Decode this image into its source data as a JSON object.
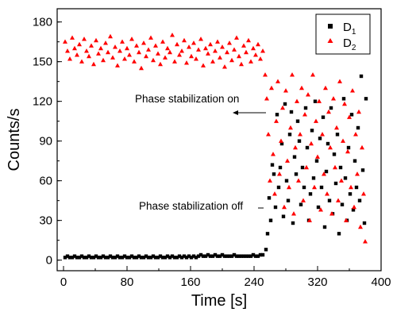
{
  "chart_data": {
    "type": "scatter",
    "xlabel": "Time [s]",
    "ylabel": "Counts/s",
    "xlim": [
      -8,
      400
    ],
    "ylim": [
      -8,
      190
    ],
    "x_ticks": [
      0,
      80,
      160,
      240,
      320,
      400
    ],
    "y_ticks": [
      0,
      30,
      60,
      90,
      120,
      150,
      180
    ],
    "grid": false,
    "legend_position": "top-right",
    "annotations": [
      {
        "text": "Phase stabilization on",
        "arrow_to": [
          254,
          112
        ]
      },
      {
        "text": "Phase stabilization off",
        "arrow_to": [
          254,
          2
        ]
      }
    ],
    "series": [
      {
        "name": "D",
        "subscript": "1",
        "marker": "square",
        "color": "#000000",
        "points": [
          [
            2,
            2
          ],
          [
            5,
            3
          ],
          [
            8,
            2
          ],
          [
            11,
            2
          ],
          [
            14,
            3
          ],
          [
            17,
            2
          ],
          [
            20,
            2
          ],
          [
            23,
            3
          ],
          [
            26,
            2
          ],
          [
            29,
            2
          ],
          [
            32,
            3
          ],
          [
            35,
            2
          ],
          [
            38,
            2
          ],
          [
            41,
            3
          ],
          [
            44,
            2
          ],
          [
            47,
            2
          ],
          [
            50,
            3
          ],
          [
            53,
            2
          ],
          [
            56,
            2
          ],
          [
            59,
            3
          ],
          [
            62,
            2
          ],
          [
            65,
            2
          ],
          [
            68,
            3
          ],
          [
            71,
            2
          ],
          [
            74,
            2
          ],
          [
            77,
            3
          ],
          [
            80,
            2
          ],
          [
            83,
            2
          ],
          [
            86,
            3
          ],
          [
            89,
            2
          ],
          [
            92,
            2
          ],
          [
            95,
            3
          ],
          [
            98,
            2
          ],
          [
            101,
            2
          ],
          [
            104,
            3
          ],
          [
            107,
            2
          ],
          [
            110,
            2
          ],
          [
            113,
            3
          ],
          [
            116,
            2
          ],
          [
            119,
            2
          ],
          [
            122,
            3
          ],
          [
            125,
            2
          ],
          [
            128,
            2
          ],
          [
            131,
            3
          ],
          [
            134,
            2
          ],
          [
            137,
            3
          ],
          [
            140,
            2
          ],
          [
            143,
            2
          ],
          [
            146,
            3
          ],
          [
            149,
            2
          ],
          [
            152,
            3
          ],
          [
            155,
            2
          ],
          [
            158,
            3
          ],
          [
            161,
            2
          ],
          [
            164,
            3
          ],
          [
            167,
            2
          ],
          [
            170,
            3
          ],
          [
            173,
            4
          ],
          [
            176,
            3
          ],
          [
            179,
            3
          ],
          [
            182,
            4
          ],
          [
            185,
            3
          ],
          [
            188,
            3
          ],
          [
            191,
            4
          ],
          [
            194,
            3
          ],
          [
            197,
            3
          ],
          [
            200,
            4
          ],
          [
            203,
            3
          ],
          [
            206,
            3
          ],
          [
            209,
            3
          ],
          [
            212,
            3
          ],
          [
            215,
            4
          ],
          [
            218,
            3
          ],
          [
            221,
            3
          ],
          [
            224,
            3
          ],
          [
            227,
            3
          ],
          [
            230,
            3
          ],
          [
            233,
            3
          ],
          [
            236,
            3
          ],
          [
            239,
            4
          ],
          [
            242,
            3
          ],
          [
            245,
            3
          ],
          [
            248,
            4
          ],
          [
            251,
            4
          ],
          [
            255,
            8
          ],
          [
            257,
            20
          ],
          [
            259,
            47
          ],
          [
            261,
            30
          ],
          [
            263,
            72
          ],
          [
            265,
            65
          ],
          [
            267,
            40
          ],
          [
            269,
            110
          ],
          [
            271,
            55
          ],
          [
            273,
            70
          ],
          [
            275,
            88
          ],
          [
            277,
            33
          ],
          [
            279,
            118
          ],
          [
            281,
            60
          ],
          [
            283,
            45
          ],
          [
            285,
            95
          ],
          [
            287,
            112
          ],
          [
            289,
            28
          ],
          [
            291,
            78
          ],
          [
            293,
            65
          ],
          [
            295,
            105
          ],
          [
            297,
            90
          ],
          [
            299,
            42
          ],
          [
            301,
            70
          ],
          [
            303,
            55
          ],
          [
            305,
            115
          ],
          [
            307,
            85
          ],
          [
            309,
            30
          ],
          [
            311,
            50
          ],
          [
            313,
            98
          ],
          [
            315,
            62
          ],
          [
            317,
            120
          ],
          [
            319,
            75
          ],
          [
            321,
            40
          ],
          [
            323,
            92
          ],
          [
            325,
            55
          ],
          [
            327,
            108
          ],
          [
            329,
            25
          ],
          [
            331,
            67
          ],
          [
            333,
            88
          ],
          [
            335,
            45
          ],
          [
            337,
            115
          ],
          [
            339,
            35
          ],
          [
            341,
            80
          ],
          [
            343,
            58
          ],
          [
            345,
            95
          ],
          [
            347,
            20
          ],
          [
            349,
            70
          ],
          [
            351,
            42
          ],
          [
            353,
            122
          ],
          [
            355,
            62
          ],
          [
            357,
            30
          ],
          [
            359,
            85
          ],
          [
            361,
            50
          ],
          [
            363,
            110
          ],
          [
            365,
            38
          ],
          [
            367,
            75
          ],
          [
            369,
            55
          ],
          [
            371,
            100
          ],
          [
            373,
            45
          ],
          [
            375,
            139
          ],
          [
            377,
            68
          ],
          [
            379,
            28
          ],
          [
            381,
            122
          ]
        ]
      },
      {
        "name": "D",
        "subscript": "2",
        "marker": "triangle",
        "color": "#ff0000",
        "points": [
          [
            2,
            165
          ],
          [
            5,
            158
          ],
          [
            8,
            152
          ],
          [
            11,
            168
          ],
          [
            14,
            160
          ],
          [
            17,
            155
          ],
          [
            20,
            163
          ],
          [
            23,
            150
          ],
          [
            26,
            167
          ],
          [
            29,
            158
          ],
          [
            32,
            154
          ],
          [
            35,
            162
          ],
          [
            38,
            148
          ],
          [
            41,
            166
          ],
          [
            44,
            156
          ],
          [
            47,
            160
          ],
          [
            50,
            151
          ],
          [
            53,
            164
          ],
          [
            56,
            157
          ],
          [
            59,
            169
          ],
          [
            62,
            153
          ],
          [
            65,
            161
          ],
          [
            68,
            147
          ],
          [
            71,
            158
          ],
          [
            74,
            165
          ],
          [
            77,
            152
          ],
          [
            80,
            160
          ],
          [
            83,
            155
          ],
          [
            86,
            167
          ],
          [
            89,
            150
          ],
          [
            92,
            162
          ],
          [
            95,
            157
          ],
          [
            98,
            145
          ],
          [
            101,
            164
          ],
          [
            104,
            154
          ],
          [
            107,
            159
          ],
          [
            110,
            168
          ],
          [
            113,
            151
          ],
          [
            116,
            162
          ],
          [
            119,
            156
          ],
          [
            122,
            148
          ],
          [
            125,
            165
          ],
          [
            128,
            153
          ],
          [
            131,
            160
          ],
          [
            134,
            157
          ],
          [
            137,
            170
          ],
          [
            140,
            150
          ],
          [
            143,
            163
          ],
          [
            146,
            155
          ],
          [
            149,
            158
          ],
          [
            152,
            166
          ],
          [
            155,
            149
          ],
          [
            158,
            161
          ],
          [
            161,
            154
          ],
          [
            164,
            164
          ],
          [
            167,
            152
          ],
          [
            170,
            159
          ],
          [
            173,
            167
          ],
          [
            176,
            147
          ],
          [
            179,
            160
          ],
          [
            182,
            156
          ],
          [
            185,
            163
          ],
          [
            188,
            150
          ],
          [
            191,
            158
          ],
          [
            194,
            165
          ],
          [
            197,
            153
          ],
          [
            200,
            161
          ],
          [
            203,
            146
          ],
          [
            206,
            157
          ],
          [
            209,
            164
          ],
          [
            212,
            151
          ],
          [
            215,
            159
          ],
          [
            218,
            168
          ],
          [
            221,
            154
          ],
          [
            224,
            148
          ],
          [
            227,
            162
          ],
          [
            230,
            157
          ],
          [
            233,
            166
          ],
          [
            236,
            150
          ],
          [
            239,
            160
          ],
          [
            242,
            155
          ],
          [
            245,
            163
          ],
          [
            248,
            152
          ],
          [
            251,
            158
          ],
          [
            254,
            140
          ],
          [
            256,
            122
          ],
          [
            258,
            95
          ],
          [
            260,
            60
          ],
          [
            262,
            130
          ],
          [
            264,
            80
          ],
          [
            266,
            50
          ],
          [
            268,
            105
          ],
          [
            270,
            135
          ],
          [
            272,
            65
          ],
          [
            274,
            90
          ],
          [
            276,
            115
          ],
          [
            278,
            40
          ],
          [
            280,
            128
          ],
          [
            282,
            75
          ],
          [
            284,
            55
          ],
          [
            286,
            100
          ],
          [
            288,
            140
          ],
          [
            290,
            35
          ],
          [
            292,
            85
          ],
          [
            294,
            120
          ],
          [
            296,
            60
          ],
          [
            298,
            95
          ],
          [
            300,
            130
          ],
          [
            302,
            45
          ],
          [
            304,
            110
          ],
          [
            306,
            70
          ],
          [
            308,
            125
          ],
          [
            310,
            30
          ],
          [
            312,
            88
          ],
          [
            314,
            140
          ],
          [
            316,
            55
          ],
          [
            318,
            105
          ],
          [
            320,
            78
          ],
          [
            322,
            120
          ],
          [
            324,
            38
          ],
          [
            326,
            95
          ],
          [
            328,
            65
          ],
          [
            330,
            130
          ],
          [
            332,
            50
          ],
          [
            334,
            112
          ],
          [
            336,
            85
          ],
          [
            338,
            35
          ],
          [
            340,
            122
          ],
          [
            342,
            70
          ],
          [
            344,
            100
          ],
          [
            346,
            45
          ],
          [
            348,
            135
          ],
          [
            350,
            60
          ],
          [
            352,
            90
          ],
          [
            354,
            118
          ],
          [
            356,
            30
          ],
          [
            358,
            82
          ],
          [
            360,
            108
          ],
          [
            362,
            55
          ],
          [
            364,
            128
          ],
          [
            366,
            40
          ],
          [
            368,
            95
          ],
          [
            370,
            65
          ],
          [
            372,
            112
          ],
          [
            374,
            25
          ],
          [
            376,
            85
          ],
          [
            378,
            50
          ],
          [
            380,
            14
          ]
        ]
      }
    ]
  }
}
